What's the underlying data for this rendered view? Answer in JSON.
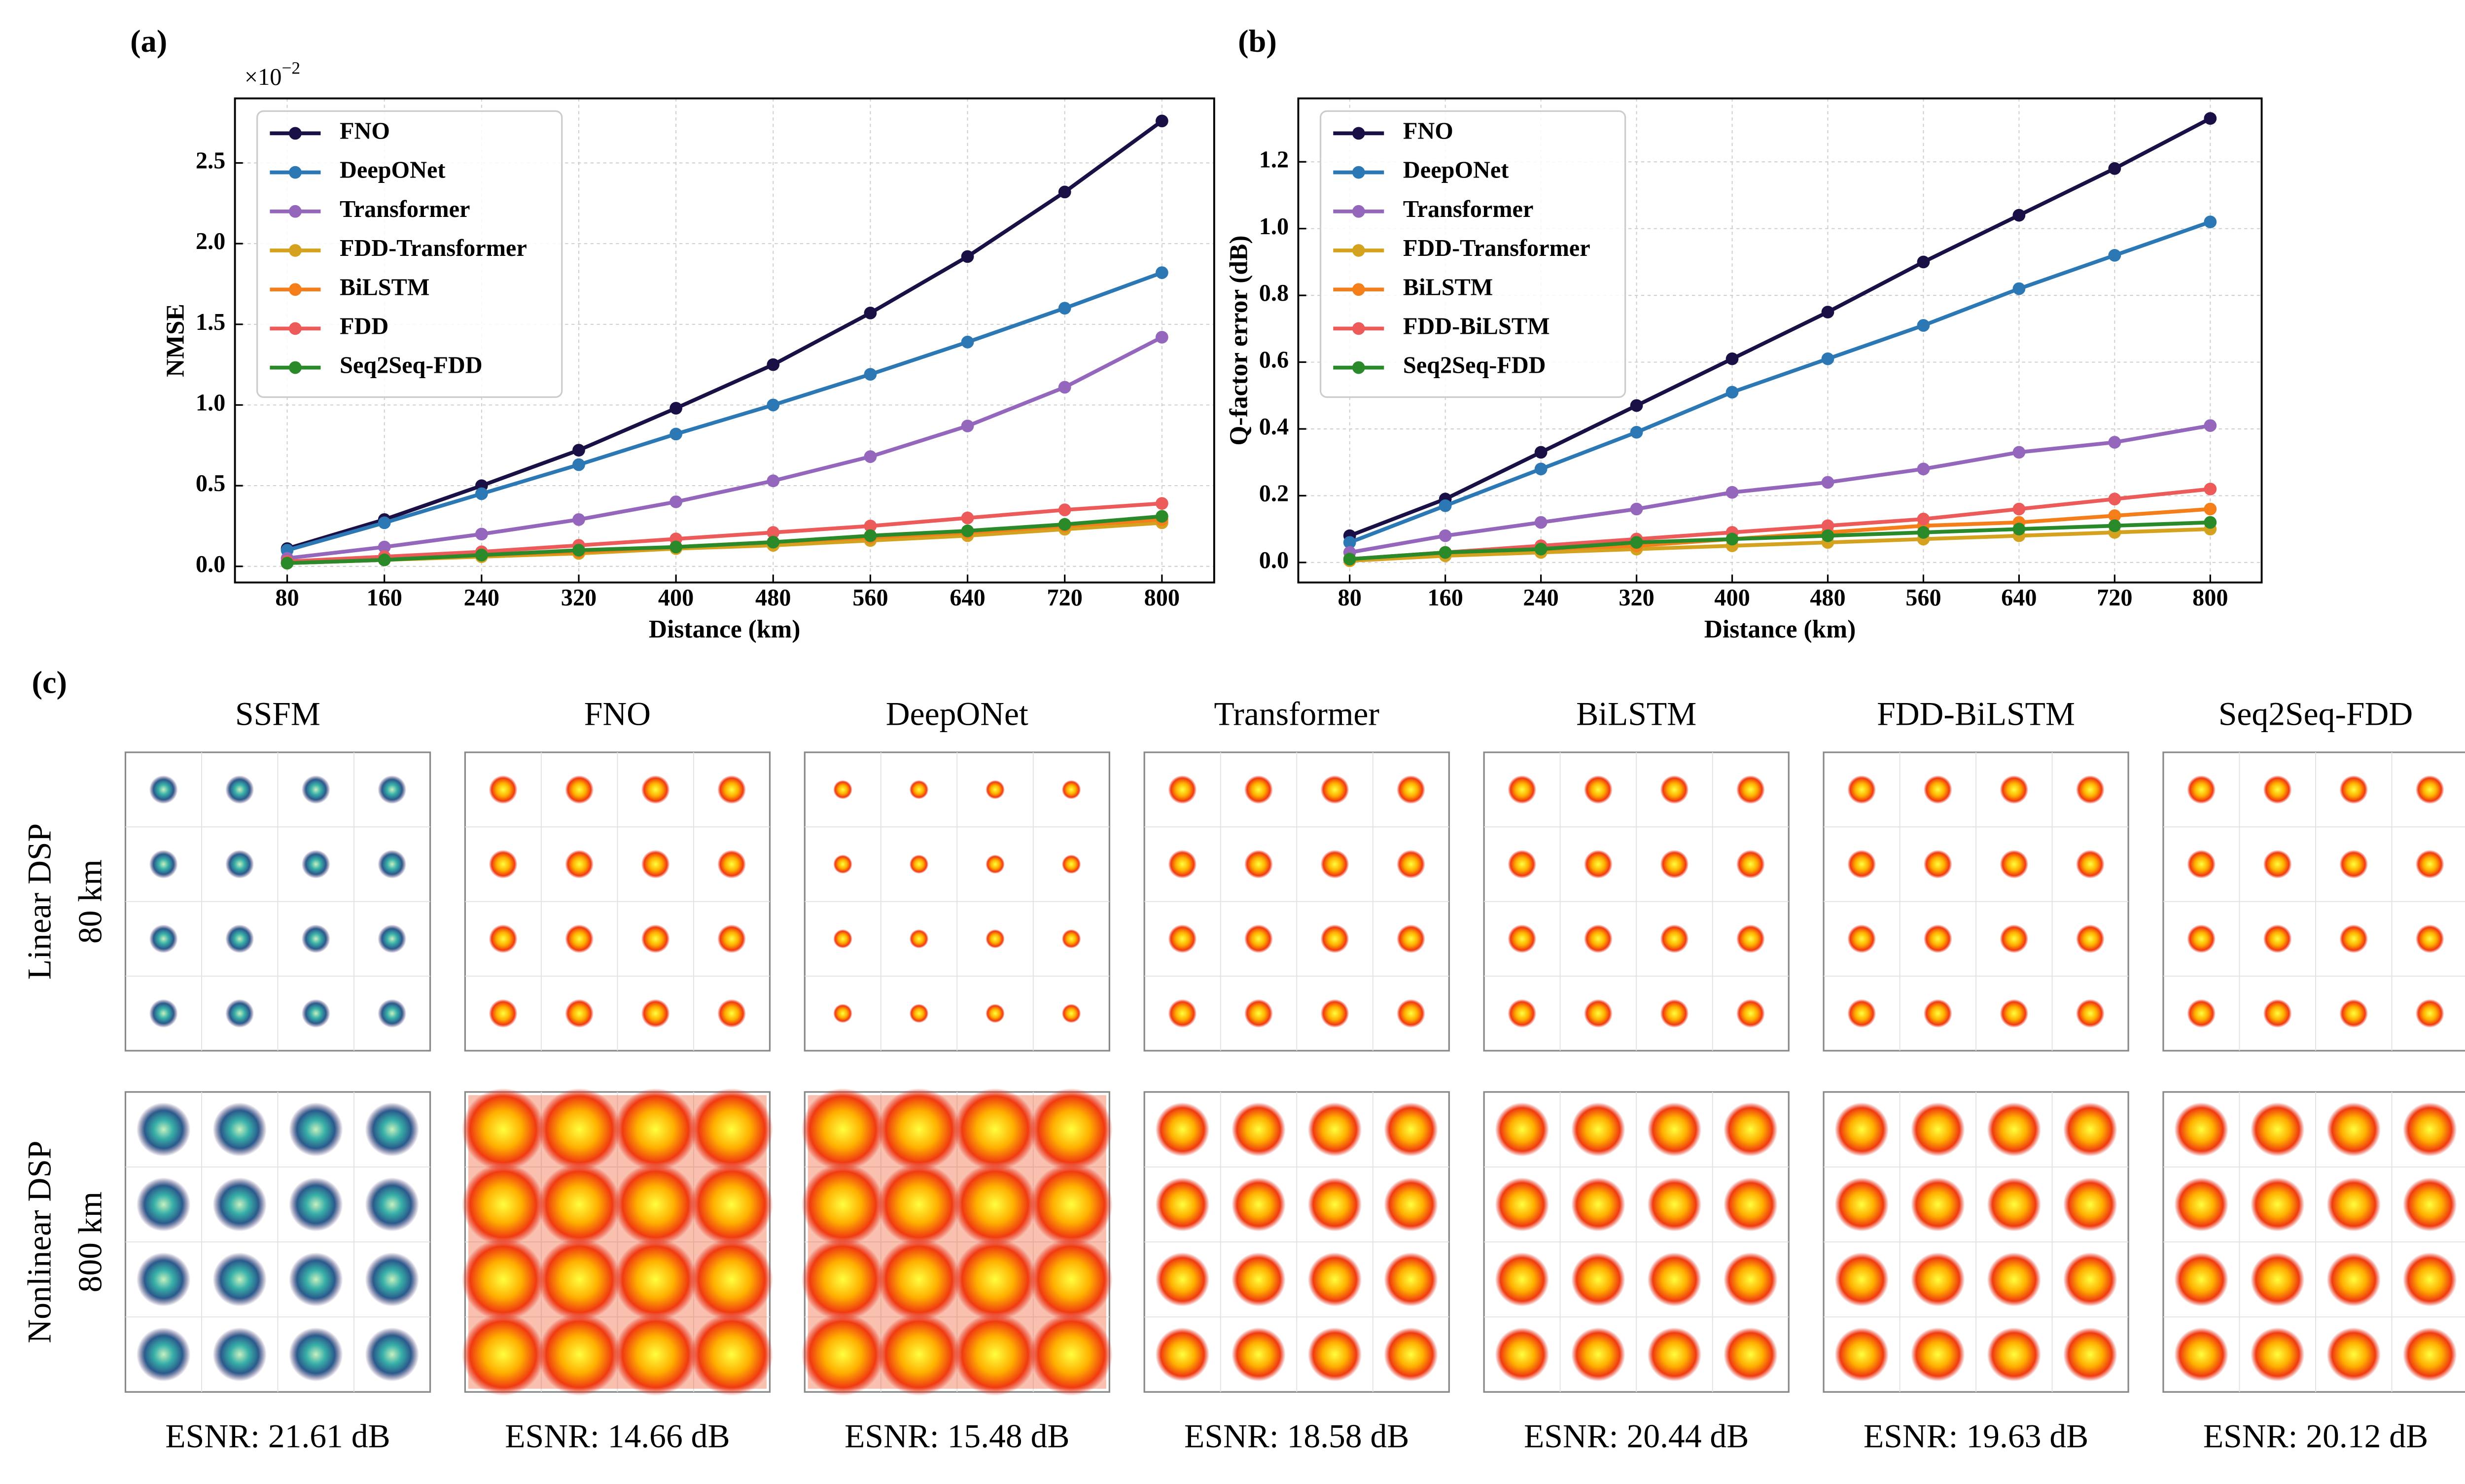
{
  "chart_data": [
    {
      "type": "line",
      "title": "(a)",
      "xlabel": "Distance (km)",
      "ylabel": "NMSE",
      "y_scale_label": {
        "base": "×10",
        "exponent": "−2"
      },
      "x": [
        80,
        160,
        240,
        320,
        400,
        480,
        560,
        640,
        720,
        800
      ],
      "xlim": [
        37,
        843
      ],
      "xticks": [
        80,
        160,
        240,
        320,
        400,
        480,
        560,
        640,
        720,
        800
      ],
      "ylim": [
        -0.1,
        2.9
      ],
      "yticks": [
        {
          "value": 0,
          "label": "0.0"
        },
        {
          "value": 0.5,
          "label": "0.5"
        },
        {
          "value": 1,
          "label": "1.0"
        },
        {
          "value": 1.5,
          "label": "1.5"
        },
        {
          "value": 2,
          "label": "2.0"
        },
        {
          "value": 2.5,
          "label": "2.5"
        }
      ],
      "grid": true,
      "legend": "upper left",
      "series": [
        {
          "name": "FNO",
          "color": "#1b1046",
          "values": [
            0.11,
            0.29,
            0.5,
            0.72,
            0.98,
            1.25,
            1.57,
            1.92,
            2.32,
            2.76
          ]
        },
        {
          "name": "DeepONet",
          "color": "#2b78b4",
          "values": [
            0.1,
            0.27,
            0.45,
            0.63,
            0.82,
            1.0,
            1.19,
            1.39,
            1.6,
            1.82
          ]
        },
        {
          "name": "Transformer",
          "color": "#9467bd",
          "values": [
            0.05,
            0.12,
            0.2,
            0.29,
            0.4,
            0.53,
            0.68,
            0.87,
            1.11,
            1.42
          ]
        },
        {
          "name": "FDD-Transformer",
          "color": "#d4a21f",
          "values": [
            0.02,
            0.04,
            0.06,
            0.08,
            0.11,
            0.13,
            0.16,
            0.19,
            0.23,
            0.27
          ]
        },
        {
          "name": "BiLSTM",
          "color": "#f47f1a",
          "values": [
            0.02,
            0.04,
            0.07,
            0.09,
            0.12,
            0.15,
            0.18,
            0.21,
            0.25,
            0.29
          ]
        },
        {
          "name": "FDD",
          "color": "#ec5a5a",
          "values": [
            0.03,
            0.06,
            0.09,
            0.13,
            0.17,
            0.21,
            0.25,
            0.3,
            0.35,
            0.39
          ]
        },
        {
          "name": "Seq2Seq-FDD",
          "color": "#2a8a2a",
          "values": [
            0.02,
            0.04,
            0.07,
            0.1,
            0.12,
            0.15,
            0.19,
            0.22,
            0.26,
            0.31
          ]
        }
      ]
    },
    {
      "type": "line",
      "title": "(b)",
      "xlabel": "Distance (km)",
      "ylabel": "Q-factor error (dB)",
      "x": [
        80,
        160,
        240,
        320,
        400,
        480,
        560,
        640,
        720,
        800
      ],
      "xlim": [
        37,
        843
      ],
      "xticks": [
        80,
        160,
        240,
        320,
        400,
        480,
        560,
        640,
        720,
        800
      ],
      "ylim": [
        -0.06,
        1.39
      ],
      "yticks": [
        {
          "value": 0,
          "label": "0.0"
        },
        {
          "value": 0.2,
          "label": "0.2"
        },
        {
          "value": 0.4,
          "label": "0.4"
        },
        {
          "value": 0.6,
          "label": "0.6"
        },
        {
          "value": 0.8,
          "label": "0.8"
        },
        {
          "value": 1,
          "label": "1.0"
        },
        {
          "value": 1.2,
          "label": "1.2"
        }
      ],
      "grid": true,
      "legend": "upper left",
      "series": [
        {
          "name": "FNO",
          "color": "#1b1046",
          "values": [
            0.08,
            0.19,
            0.33,
            0.47,
            0.61,
            0.75,
            0.9,
            1.04,
            1.18,
            1.33
          ]
        },
        {
          "name": "DeepONet",
          "color": "#2b78b4",
          "values": [
            0.06,
            0.17,
            0.28,
            0.39,
            0.51,
            0.61,
            0.71,
            0.82,
            0.92,
            1.02
          ]
        },
        {
          "name": "Transformer",
          "color": "#9467bd",
          "values": [
            0.03,
            0.08,
            0.12,
            0.16,
            0.21,
            0.24,
            0.28,
            0.33,
            0.36,
            0.41
          ]
        },
        {
          "name": "FDD-Transformer",
          "color": "#d4a21f",
          "values": [
            0.005,
            0.02,
            0.03,
            0.04,
            0.05,
            0.06,
            0.07,
            0.08,
            0.09,
            0.1
          ]
        },
        {
          "name": "BiLSTM",
          "color": "#f47f1a",
          "values": [
            0.01,
            0.03,
            0.04,
            0.05,
            0.07,
            0.09,
            0.11,
            0.12,
            0.14,
            0.16
          ]
        },
        {
          "name": "FDD-BiLSTM",
          "color": "#ec5a5a",
          "values": [
            0.01,
            0.03,
            0.05,
            0.07,
            0.09,
            0.11,
            0.13,
            0.16,
            0.19,
            0.22
          ]
        },
        {
          "name": "Seq2Seq-FDD",
          "color": "#2a8a2a",
          "values": [
            0.01,
            0.03,
            0.04,
            0.06,
            0.07,
            0.08,
            0.09,
            0.1,
            0.11,
            0.12
          ]
        }
      ]
    }
  ],
  "constellations": {
    "label": "(c)",
    "rows": [
      [
        "Linear DSP",
        "80 km"
      ],
      [
        "Nonlinear DSP",
        "800 km"
      ]
    ],
    "columns": [
      {
        "title": "SSFM",
        "esnr": "ESNR: 21.61 dB"
      },
      {
        "title": "FNO",
        "esnr": "ESNR: 14.66 dB"
      },
      {
        "title": "DeepONet",
        "esnr": "ESNR: 15.48 dB"
      },
      {
        "title": "Transformer",
        "esnr": "ESNR: 18.58 dB"
      },
      {
        "title": "BiLSTM",
        "esnr": "ESNR: 20.44 dB"
      },
      {
        "title": "FDD-BiLSTM",
        "esnr": "ESNR: 19.63 dB"
      },
      {
        "title": "Seq2Seq-FDD",
        "esnr": "ESNR: 20.12 dB"
      }
    ]
  }
}
